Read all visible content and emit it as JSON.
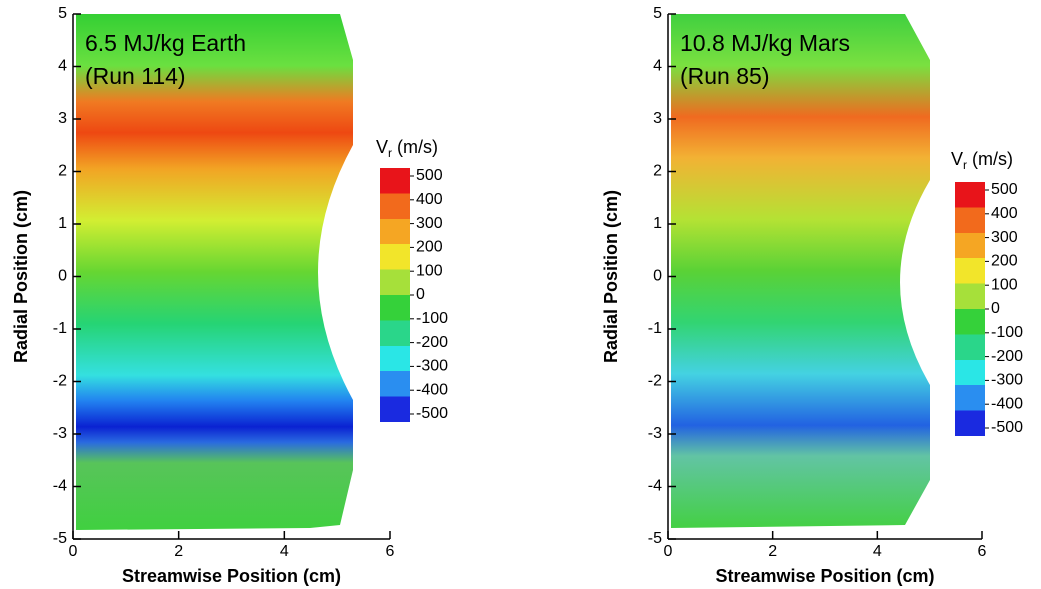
{
  "chart_data": [
    {
      "type": "contour",
      "annotation": [
        "6.5 MJ/kg Earth",
        "(Run 114)"
      ],
      "xlabel": "Streamwise Position (cm)",
      "ylabel": "Radial Position (cm)",
      "xlim": [
        0,
        6
      ],
      "ylim": [
        -5,
        5
      ],
      "xticks": [
        0,
        2,
        4,
        6
      ],
      "yticks": [
        -5,
        -4,
        -3,
        -2,
        -1,
        0,
        1,
        2,
        3,
        4,
        5
      ],
      "colorbar_label": [
        "V",
        "r",
        "(m/s)"
      ],
      "clim": [
        -500,
        500
      ],
      "colorbar_ticks": [
        500,
        400,
        300,
        200,
        100,
        0,
        -100,
        -200,
        -300,
        -400,
        -500
      ],
      "colorbar_colors": [
        "#e8141a",
        "#f26a1c",
        "#f5a623",
        "#f2e52a",
        "#a6e03a",
        "#35d13a",
        "#2ad68a",
        "#2ae6e6",
        "#2a8ef0",
        "#1a2ae0"
      ]
    },
    {
      "type": "contour",
      "annotation": [
        "10.8 MJ/kg Mars",
        "(Run 85)"
      ],
      "xlabel": "Streamwise Position (cm)",
      "ylabel": "Radial Position (cm)",
      "xlim": [
        0,
        6
      ],
      "ylim": [
        -5,
        5
      ],
      "xticks": [
        0,
        2,
        4,
        6
      ],
      "yticks": [
        -5,
        -4,
        -3,
        -2,
        -1,
        0,
        1,
        2,
        3,
        4,
        5
      ],
      "colorbar_label": [
        "V",
        "r",
        "(m/s)"
      ],
      "clim": [
        -500,
        500
      ],
      "colorbar_ticks": [
        500,
        400,
        300,
        200,
        100,
        0,
        -100,
        -200,
        -300,
        -400,
        -500
      ],
      "colorbar_colors": [
        "#e8141a",
        "#f26a1c",
        "#f5a623",
        "#f2e52a",
        "#a6e03a",
        "#35d13a",
        "#2ad68a",
        "#2ae6e6",
        "#2a8ef0",
        "#1a2ae0"
      ]
    }
  ]
}
